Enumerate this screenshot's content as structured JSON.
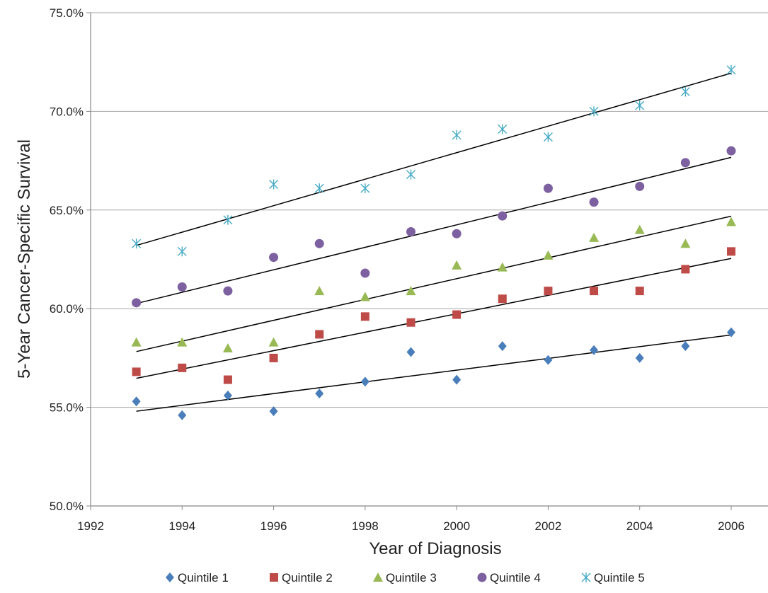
{
  "chart_data": {
    "type": "scatter",
    "title": "",
    "xlabel": "Year of Diagnosis",
    "ylabel": "5-Year Cancer-Specific Survival",
    "xlim": [
      1992,
      2006
    ],
    "ylim": [
      50,
      75
    ],
    "x_ticks": [
      1992,
      1994,
      1996,
      1998,
      2000,
      2002,
      2004,
      2006
    ],
    "y_ticks": [
      50,
      55,
      60,
      65,
      70,
      75
    ],
    "x_tick_labels": [
      "1992",
      "1994",
      "1996",
      "1998",
      "2000",
      "2002",
      "2004",
      "2006"
    ],
    "y_tick_labels": [
      "50.0%",
      "55.0%",
      "60.0%",
      "65.0%",
      "70.0%",
      "75.0%"
    ],
    "grid": "horizontal",
    "legend_position": "bottom",
    "trendlines": "linear",
    "x": [
      1993,
      1994,
      1995,
      1996,
      1997,
      1998,
      1999,
      2000,
      2001,
      2002,
      2003,
      2004,
      2005,
      2006
    ],
    "series": [
      {
        "name": "Quintile 1",
        "marker": "diamond",
        "color": "#4a7ebb",
        "values": [
          55.3,
          54.6,
          55.6,
          54.8,
          55.7,
          56.3,
          57.8,
          56.4,
          58.1,
          57.4,
          57.9,
          57.5,
          58.1,
          58.8
        ]
      },
      {
        "name": "Quintile 2",
        "marker": "square",
        "color": "#be4b48",
        "values": [
          56.8,
          57.0,
          56.4,
          57.5,
          58.7,
          59.6,
          59.3,
          59.7,
          60.5,
          60.9,
          60.9,
          60.9,
          62.0,
          62.9
        ]
      },
      {
        "name": "Quintile 3",
        "marker": "triangle",
        "color": "#98b954",
        "values": [
          58.3,
          58.3,
          58.0,
          58.3,
          60.9,
          60.6,
          60.9,
          62.2,
          62.1,
          62.7,
          63.6,
          64.0,
          63.3,
          64.4
        ]
      },
      {
        "name": "Quintile 4",
        "marker": "circle",
        "color": "#7d60a0",
        "values": [
          60.3,
          61.1,
          60.9,
          62.6,
          63.3,
          61.8,
          63.9,
          63.8,
          64.7,
          66.1,
          65.4,
          66.2,
          67.4,
          68.0
        ]
      },
      {
        "name": "Quintile 5",
        "marker": "asterisk",
        "color": "#46aac5",
        "values": [
          63.3,
          62.9,
          64.5,
          66.3,
          66.1,
          66.1,
          66.8,
          68.8,
          69.1,
          68.7,
          70.0,
          70.3,
          71.0,
          72.1
        ]
      }
    ]
  }
}
